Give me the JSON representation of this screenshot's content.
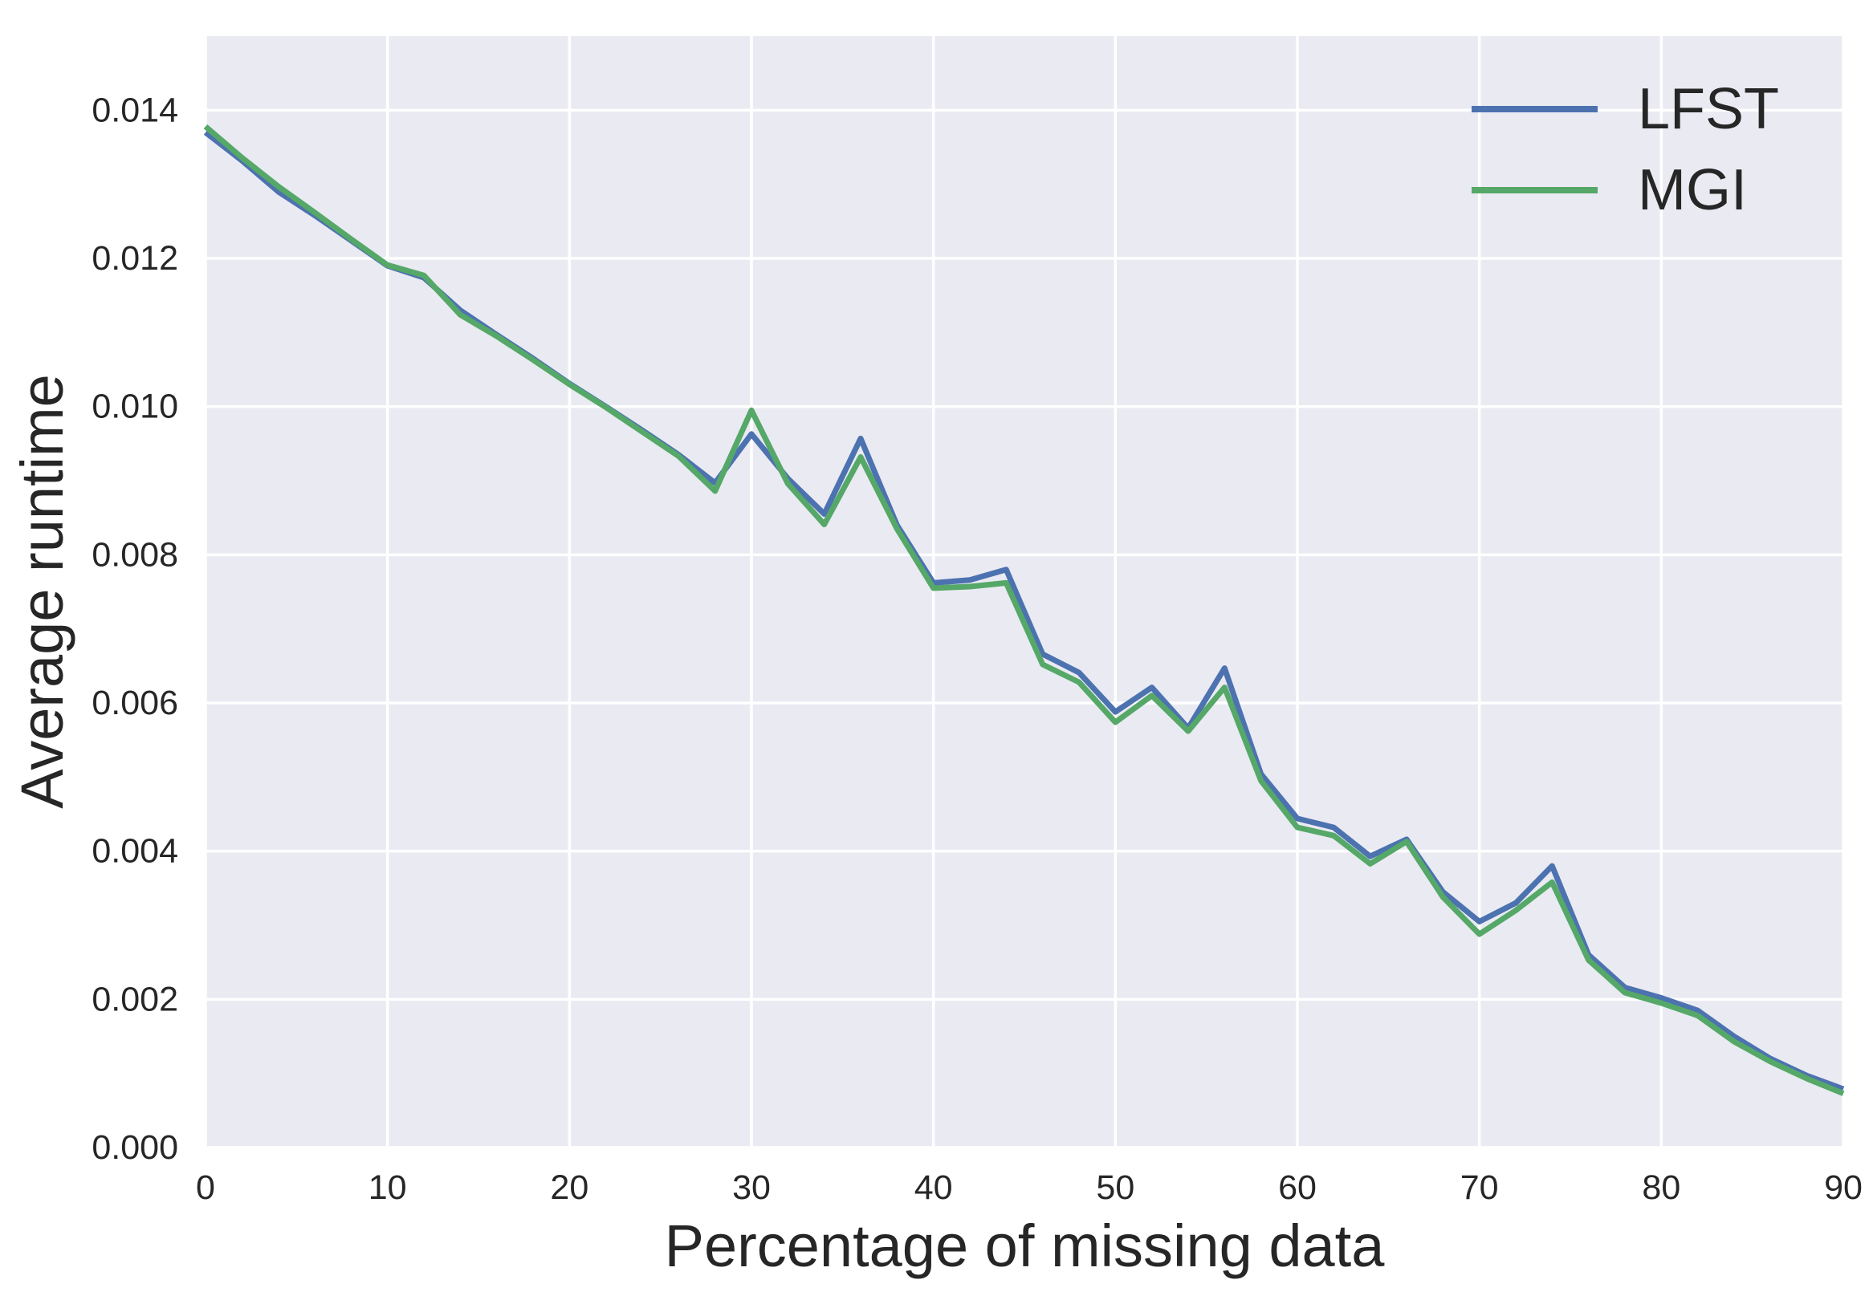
{
  "figure": {
    "background": "#ffffff"
  },
  "chart_data": {
    "type": "line",
    "title": "",
    "xlabel": "Percentage of missing data",
    "ylabel": "Average runtime",
    "xlim": [
      0,
      90
    ],
    "ylim": [
      0,
      0.015
    ],
    "grid": true,
    "legend_position": "upper right",
    "colors": {
      "plot_background": "#EAEAF2",
      "grid": "#FFFFFF",
      "text": "#262626"
    },
    "xticks": {
      "values": [
        0,
        10,
        20,
        30,
        40,
        50,
        60,
        70,
        80,
        90
      ],
      "labels": [
        "0",
        "10",
        "20",
        "30",
        "40",
        "50",
        "60",
        "70",
        "80",
        "90"
      ]
    },
    "yticks": {
      "values": [
        0.0,
        0.002,
        0.004,
        0.006,
        0.008,
        0.01,
        0.012,
        0.014
      ],
      "labels": [
        "0.000",
        "0.002",
        "0.004",
        "0.006",
        "0.008",
        "0.010",
        "0.012",
        "0.014"
      ]
    },
    "x": [
      0,
      2,
      4,
      6,
      8,
      10,
      12,
      14,
      16,
      18,
      20,
      22,
      24,
      26,
      28,
      30,
      32,
      34,
      36,
      38,
      40,
      42,
      44,
      46,
      48,
      50,
      52,
      54,
      56,
      58,
      60,
      62,
      64,
      66,
      68,
      70,
      72,
      74,
      76,
      78,
      80,
      82,
      84,
      86,
      88,
      90
    ],
    "series": [
      {
        "name": "LFST",
        "color": "#4C72B0",
        "values": [
          0.0137,
          0.01332,
          0.0129,
          0.01258,
          0.01224,
          0.0119,
          0.01174,
          0.0113,
          0.01097,
          0.01065,
          0.01031,
          0.01,
          0.00968,
          0.00935,
          0.00897,
          0.00963,
          0.00903,
          0.00855,
          0.00957,
          0.0084,
          0.00762,
          0.00766,
          0.0078,
          0.00666,
          0.00641,
          0.00588,
          0.00621,
          0.00566,
          0.00647,
          0.00504,
          0.00444,
          0.00432,
          0.00393,
          0.00416,
          0.00345,
          0.00305,
          0.0033,
          0.0038,
          0.0026,
          0.00216,
          0.00202,
          0.00185,
          0.0015,
          0.0012,
          0.00097,
          0.00079
        ]
      },
      {
        "name": "MGI",
        "color": "#55A868",
        "values": [
          0.01378,
          0.01336,
          0.01297,
          0.01262,
          0.01226,
          0.01191,
          0.01177,
          0.01124,
          0.01095,
          0.01063,
          0.0103,
          0.00999,
          0.00966,
          0.00933,
          0.00886,
          0.00995,
          0.00896,
          0.00841,
          0.00932,
          0.00835,
          0.00755,
          0.00757,
          0.00762,
          0.00652,
          0.00628,
          0.00574,
          0.0061,
          0.00562,
          0.00621,
          0.00495,
          0.00432,
          0.00421,
          0.00383,
          0.00413,
          0.00338,
          0.00288,
          0.0032,
          0.00358,
          0.00253,
          0.00209,
          0.00195,
          0.00178,
          0.00143,
          0.00116,
          0.00093,
          0.00073
        ]
      }
    ]
  }
}
